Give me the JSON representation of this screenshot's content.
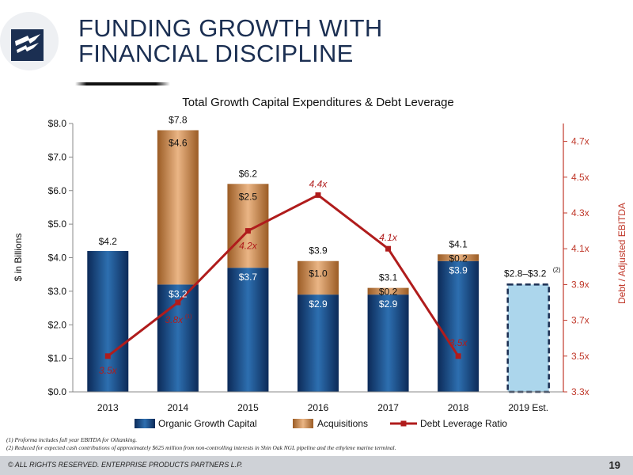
{
  "page": {
    "title_line1": "FUNDING GROWTH WITH",
    "title_line2": "FINANCIAL DISCIPLINE",
    "footnote1": "(1)  Proforma includes full year EBITDA for Oiltanking.",
    "footnote2": "(2)  Reduced for expected cash contributions of approximately $625 million from non-controlling interests in Shin Oak NGL pipeline and the ethylene marine terminal.",
    "copyright": "© ALL RIGHTS RESERVED. ENTERPRISE PRODUCTS PARTNERS L.P.",
    "page_number": "19",
    "logo_icon": "enterprise-products-logo-icon"
  },
  "chart_data": {
    "type": "bar",
    "title": "Total Growth Capital Expenditures & Debt Leverage",
    "ylabel": "$ in Billions",
    "y2label": "Debt / Adjusted EBITDA",
    "ylim": [
      0,
      8
    ],
    "yticks": [
      "$0.0",
      "$1.0",
      "$2.0",
      "$3.0",
      "$4.0",
      "$5.0",
      "$6.0",
      "$7.0",
      "$8.0"
    ],
    "y2lim": [
      3.3,
      4.8
    ],
    "y2ticks": [
      "3.3x",
      "3.5x",
      "3.7x",
      "3.9x",
      "4.1x",
      "4.3x",
      "4.5x",
      "4.7x"
    ],
    "categories": [
      "2013",
      "2014",
      "2015",
      "2016",
      "2017",
      "2018",
      "2019 Est."
    ],
    "series": [
      {
        "name": "Organic Growth Capital",
        "color": "#1c4e8c",
        "values": [
          4.2,
          3.2,
          3.7,
          2.9,
          2.9,
          3.9,
          null
        ],
        "labels": [
          "",
          "$3.2",
          "$3.7",
          "$2.9",
          "$2.9",
          "$3.9",
          ""
        ]
      },
      {
        "name": "Acquisitions",
        "color": "#d4935a",
        "values": [
          0,
          4.6,
          2.5,
          1.0,
          0.2,
          0.2,
          null
        ],
        "labels": [
          "",
          "$4.6",
          "$2.5",
          "$1.0",
          "$0.2",
          "$0.2",
          ""
        ]
      },
      {
        "name": "Debt Leverage Ratio",
        "type": "line",
        "axis": "right",
        "color": "#b01c1c",
        "values": [
          3.5,
          3.8,
          4.2,
          4.4,
          4.1,
          3.5,
          null
        ],
        "labels": [
          "3.5x",
          "3.8x",
          "4.2x",
          "4.4x",
          "4.1x",
          "3.5x",
          ""
        ],
        "label_footnote": "(1)",
        "label_footnote_index": 1
      }
    ],
    "totals": [
      "$4.2",
      "$7.8",
      "$6.2",
      "$3.9",
      "$3.1",
      "$4.1",
      "$2.8–$3.2"
    ],
    "estimate": {
      "category": "2019 Est.",
      "value": 3.2,
      "label": "$2.8–$3.2",
      "footnote": "(2)",
      "fill": "#acd6ec",
      "border": "#1b2f52"
    },
    "legend_position": "bottom",
    "grid": false
  }
}
